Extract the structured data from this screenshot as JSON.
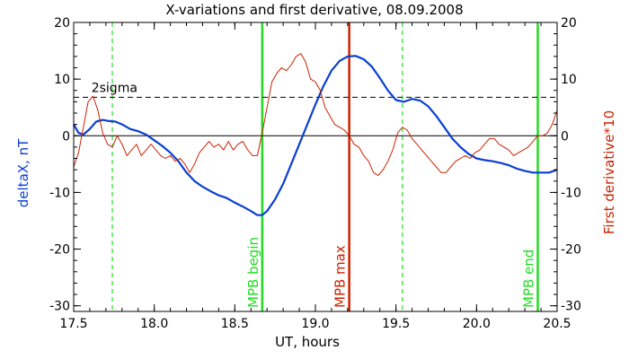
{
  "chart_data": {
    "type": "line",
    "title": "X-variations and first derivative, 08.09.2008",
    "xlabel": "UT, hours",
    "ylabel_left": "deltaX, nT",
    "ylabel_right": "First derivative*10",
    "xlim": [
      17.5,
      20.5
    ],
    "ylim": [
      -31,
      20
    ],
    "x_ticks": [
      17.5,
      18.0,
      18.5,
      19.0,
      19.5,
      20.0,
      20.5
    ],
    "x_tick_labels": [
      "17.5",
      "18.0",
      "18.5",
      "19.0",
      "19.5",
      "20.0",
      "20.5"
    ],
    "y_ticks": [
      -30,
      -20,
      -10,
      0,
      10,
      20
    ],
    "y_tick_labels": [
      "-30",
      "-20",
      "-10",
      "0",
      "10",
      "20"
    ],
    "grid": false,
    "colors": {
      "deltaX": "#0a3fd1",
      "derivative": "#cc2200",
      "marker_green": "#22dd22",
      "marker_red": "#cc2200",
      "axis": "#000000"
    },
    "sigma_level": 6.8,
    "sigma_label": "2sigma",
    "zero_line": 0,
    "dashed_markers": [
      17.74,
      19.54
    ],
    "markers": [
      {
        "x": 18.67,
        "label": "MPB begin",
        "color": "#22dd22"
      },
      {
        "x": 19.21,
        "label": "MPB max",
        "color": "#cc2200"
      },
      {
        "x": 20.38,
        "label": "MPB end",
        "color": "#22dd22"
      }
    ],
    "series": [
      {
        "x": [
          17.5,
          17.53,
          17.56,
          17.6,
          17.64,
          17.68,
          17.72,
          17.76,
          17.8,
          17.85,
          17.9,
          17.95,
          18.0,
          18.05,
          18.1,
          18.15,
          18.2,
          18.25,
          18.3,
          18.35,
          18.4,
          18.45,
          18.5,
          18.55,
          18.6,
          18.64,
          18.67,
          18.7,
          18.75,
          18.8,
          18.85,
          18.9,
          18.95,
          19.0,
          19.05,
          19.1,
          19.15,
          19.2,
          19.25,
          19.3,
          19.35,
          19.4,
          19.45,
          19.5,
          19.55,
          19.6,
          19.65,
          19.7,
          19.75,
          19.8,
          19.85,
          19.9,
          19.95,
          20.0,
          20.05,
          20.1,
          20.15,
          20.2,
          20.25,
          20.3,
          20.35,
          20.4,
          20.45,
          20.5
        ],
        "values": [
          2.0,
          0.5,
          0.2,
          1.2,
          2.5,
          2.8,
          2.6,
          2.5,
          2.0,
          1.2,
          0.8,
          0.2,
          -0.8,
          -1.8,
          -3.0,
          -4.5,
          -6.5,
          -8.0,
          -9.0,
          -9.8,
          -10.5,
          -11.0,
          -11.8,
          -12.5,
          -13.3,
          -14.0,
          -14.0,
          -13.3,
          -11.2,
          -8.5,
          -5.0,
          -1.5,
          2.0,
          5.5,
          8.8,
          11.5,
          13.2,
          14.0,
          14.1,
          13.5,
          12.2,
          10.2,
          8.0,
          6.3,
          6.0,
          6.5,
          6.2,
          5.2,
          3.5,
          1.5,
          -0.5,
          -2.0,
          -3.2,
          -4.0,
          -4.3,
          -4.5,
          -4.8,
          -5.2,
          -5.8,
          -6.2,
          -6.5,
          -6.5,
          -6.5,
          -6.0
        ]
      },
      {
        "x": [
          17.5,
          17.53,
          17.56,
          17.59,
          17.62,
          17.65,
          17.68,
          17.71,
          17.74,
          17.77,
          17.8,
          17.83,
          17.86,
          17.89,
          17.92,
          17.95,
          17.98,
          18.01,
          18.04,
          18.07,
          18.1,
          18.13,
          18.16,
          18.19,
          18.22,
          18.25,
          18.28,
          18.31,
          18.34,
          18.37,
          18.4,
          18.43,
          18.46,
          18.49,
          18.52,
          18.55,
          18.58,
          18.61,
          18.64,
          18.67,
          18.7,
          18.73,
          18.76,
          18.79,
          18.82,
          18.85,
          18.88,
          18.91,
          18.94,
          18.97,
          19.0,
          19.03,
          19.06,
          19.09,
          19.12,
          19.15,
          19.18,
          19.21,
          19.24,
          19.27,
          19.3,
          19.33,
          19.36,
          19.39,
          19.42,
          19.45,
          19.48,
          19.51,
          19.54,
          19.57,
          19.6,
          19.63,
          19.66,
          19.69,
          19.72,
          19.75,
          19.78,
          19.81,
          19.84,
          19.87,
          19.9,
          19.93,
          19.96,
          19.99,
          20.02,
          20.05,
          20.08,
          20.11,
          20.14,
          20.17,
          20.2,
          20.23,
          20.26,
          20.29,
          20.32,
          20.35,
          20.38,
          20.41,
          20.44,
          20.47,
          20.5
        ],
        "values": [
          -5.5,
          -3.0,
          1.5,
          6.0,
          7.0,
          4.5,
          0.5,
          -1.5,
          -2.0,
          0.0,
          -1.5,
          -3.5,
          -2.5,
          -1.5,
          -3.5,
          -2.5,
          -1.5,
          -2.5,
          -3.5,
          -4.0,
          -3.5,
          -4.5,
          -4.0,
          -5.0,
          -6.5,
          -5.0,
          -3.0,
          -2.0,
          -1.0,
          -2.0,
          -1.5,
          -2.5,
          -1.0,
          -2.5,
          -1.5,
          -1.0,
          -2.5,
          -3.5,
          -3.5,
          0.5,
          5.0,
          9.5,
          11.0,
          12.0,
          11.5,
          12.5,
          14.0,
          14.5,
          13.0,
          10.0,
          9.5,
          8.0,
          5.0,
          3.5,
          2.0,
          1.5,
          1.0,
          0.0,
          -1.5,
          -2.0,
          -3.5,
          -4.5,
          -6.5,
          -7.0,
          -6.0,
          -4.5,
          -2.5,
          0.5,
          1.5,
          1.0,
          -0.5,
          -1.5,
          -2.5,
          -3.5,
          -4.5,
          -5.5,
          -6.5,
          -6.5,
          -5.5,
          -4.5,
          -4.0,
          -3.5,
          -4.0,
          -3.0,
          -2.5,
          -1.5,
          -0.5,
          -0.5,
          -1.5,
          -2.0,
          -2.5,
          -3.5,
          -3.0,
          -2.5,
          -2.0,
          -1.0,
          0.0,
          0.0,
          0.5,
          2.0,
          4.5
        ]
      }
    ]
  }
}
